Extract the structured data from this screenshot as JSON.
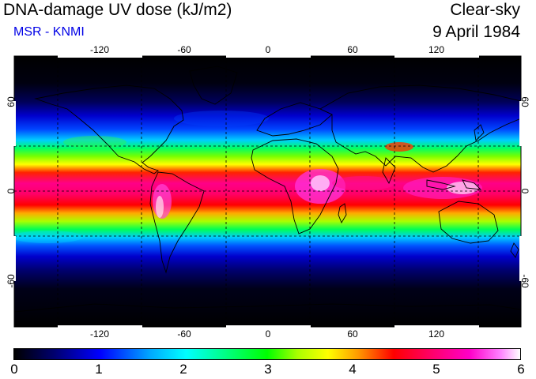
{
  "header": {
    "title": "DNA-damage UV dose (kJ/m2)",
    "source": "MSR - KNMI",
    "sky_condition": "Clear-sky",
    "date": "9 April 1984"
  },
  "map": {
    "projection": "equirectangular",
    "lon_range": [
      -180,
      180
    ],
    "lat_range": [
      -90,
      90
    ],
    "lon_ticks": [
      "-120",
      "-60",
      "0",
      "60",
      "120"
    ],
    "lat_ticks_left": [
      "60",
      "0",
      "-60"
    ],
    "lat_ticks_right": [
      "60",
      "0",
      "-60"
    ],
    "gridlines": "dashed",
    "grid_lon": [
      -150,
      -90,
      -30,
      30,
      90,
      150
    ],
    "grid_lat": [
      -30,
      30
    ]
  },
  "colorbar": {
    "min": 0,
    "max": 6,
    "labels": [
      "0",
      "1",
      "2",
      "3",
      "4",
      "5",
      "6"
    ],
    "colors": [
      "#000000",
      "#00006a",
      "#0000ff",
      "#00aaff",
      "#00ffff",
      "#00ff80",
      "#00ff00",
      "#aaff00",
      "#ffff00",
      "#ff9900",
      "#ff0000",
      "#ff0070",
      "#ff00c8",
      "#ff80ff",
      "#ffffff"
    ]
  }
}
